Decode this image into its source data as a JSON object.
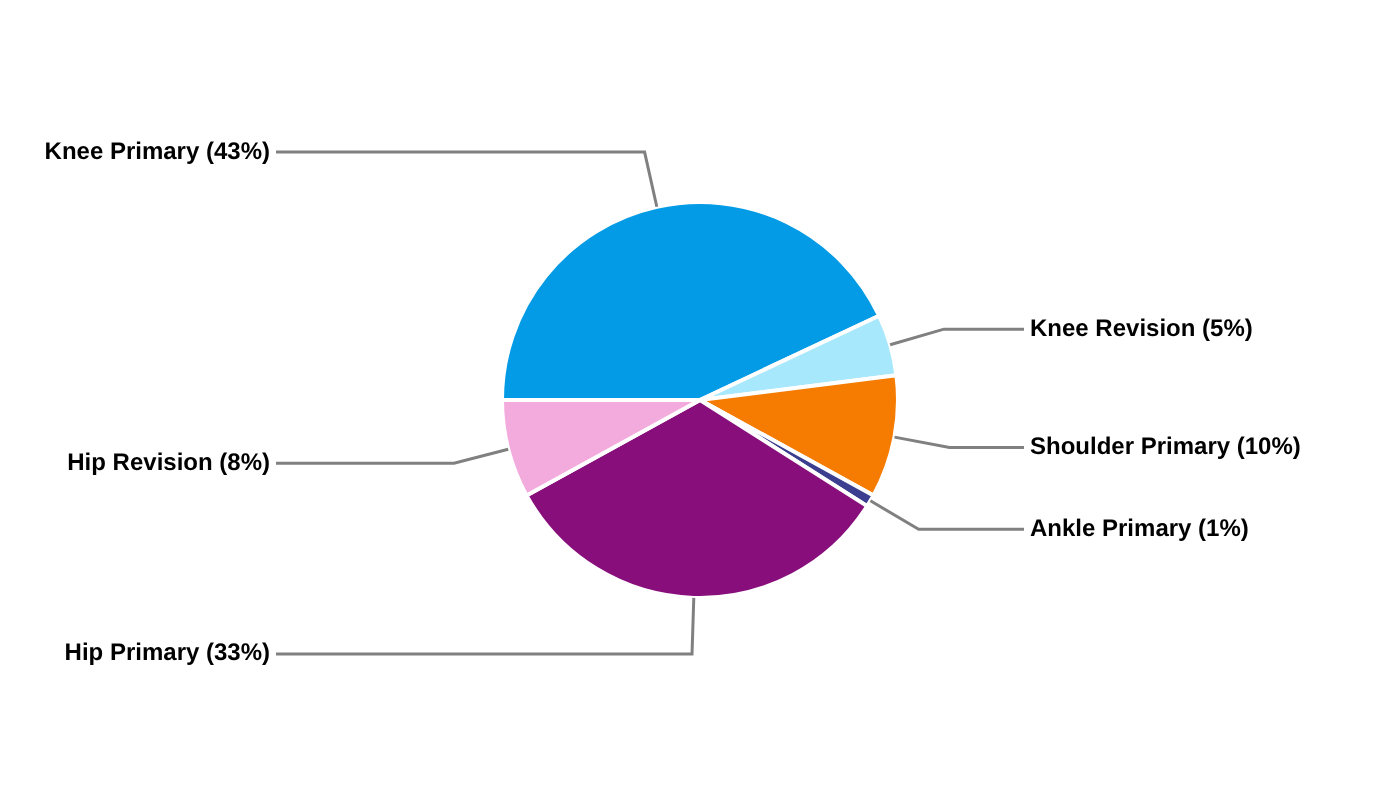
{
  "chart_data": {
    "type": "pie",
    "categories": [
      "Knee Primary",
      "Knee Revision",
      "Shoulder Primary",
      "Ankle Primary",
      "Hip Primary",
      "Hip Revision"
    ],
    "values": [
      43,
      5,
      10,
      1,
      33,
      8
    ],
    "value_labels": [
      "(43%)",
      "(5%)",
      "(10%)",
      "(1%)",
      "(33%)",
      "(8%)"
    ],
    "colors": [
      "#039be5",
      "#a7e8fc",
      "#f57c00",
      "#3c3f8f",
      "#880e7b",
      "#f3aadc"
    ],
    "legend": false
  }
}
